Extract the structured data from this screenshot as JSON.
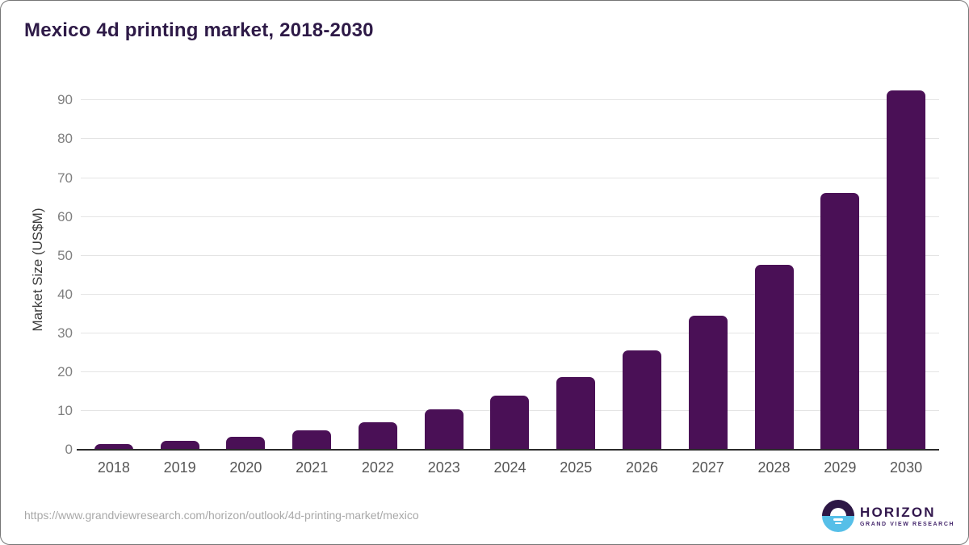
{
  "title": "Mexico 4d printing market, 2018-2030",
  "chart_data": {
    "type": "bar",
    "title": "Mexico 4d printing market, 2018-2030",
    "categories": [
      "2018",
      "2019",
      "2020",
      "2021",
      "2022",
      "2023",
      "2024",
      "2025",
      "2026",
      "2027",
      "2028",
      "2029",
      "2030"
    ],
    "values": [
      1.5,
      2.3,
      3.4,
      5.0,
      7.0,
      10.4,
      13.9,
      18.7,
      25.5,
      34.6,
      47.7,
      66.2,
      92.6
    ],
    "xlabel": "",
    "ylabel": "Market Size (US$M)",
    "ylim": [
      0,
      93
    ],
    "yticks": [
      0,
      10,
      20,
      30,
      40,
      50,
      60,
      70,
      80,
      90
    ],
    "grid": true,
    "legend": "none",
    "bar_color": "#4a1056"
  },
  "footer": {
    "source_url": "https://www.grandviewresearch.com/horizon/outlook/4d-printing-market/mexico"
  },
  "logo": {
    "brand": "HORIZON",
    "subbrand": "GRAND VIEW RESEARCH"
  },
  "colors": {
    "title_text": "#2e1a47",
    "bar": "#4a1056",
    "gridline": "#e4e4e4",
    "axis_line": "#2b2b2b",
    "tick_text": "#7f7f7f",
    "x_tick_text": "#565656",
    "url_text": "#a8a8a8",
    "logo_purple": "#2d1745",
    "logo_blue": "#56bfe8"
  }
}
